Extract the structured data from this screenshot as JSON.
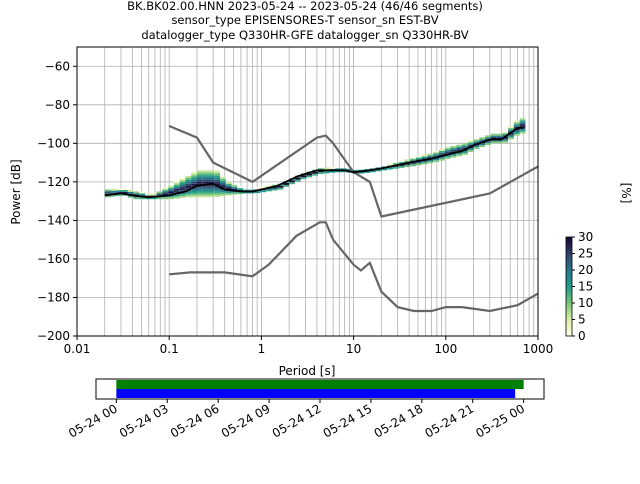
{
  "title_lines": [
    "BK.BK02.00.HNN   2023-05-24 -- 2023-05-24  (46/46 segments)",
    "sensor_type EPISENSORES-T sensor_sn EST-BV",
    "datalogger_type Q330HR-GFE datalogger_sn Q330HR-BV"
  ],
  "chart_data": [
    {
      "type": "heatmap",
      "xlabel": "Period [s]",
      "ylabel": "Power [dB]",
      "xscale": "log",
      "xlim": [
        0.01,
        1000
      ],
      "ylim": [
        -200,
        -50
      ],
      "xtick_labels": [
        "0.01",
        "0.1",
        "1",
        "10",
        "100",
        "1000"
      ],
      "xticks": [
        0.01,
        0.1,
        1,
        10,
        100,
        1000
      ],
      "yticks": [
        -200,
        -180,
        -160,
        -140,
        -120,
        -100,
        -80,
        -60
      ],
      "grid": true,
      "colorbar": {
        "label": "[%]",
        "ticks": [
          0,
          5,
          10,
          15,
          20,
          25,
          30
        ],
        "range": [
          0,
          30
        ],
        "colors": [
          "#ffffe5",
          "#d9f0a3",
          "#78c679",
          "#1f9e89",
          "#2a788e",
          "#31446b",
          "#1a0a3a"
        ]
      },
      "noise_model_color": "#666666",
      "noise_models": [
        {
          "x": [
            0.1,
            0.2,
            0.3,
            0.8,
            4,
            5,
            6,
            10,
            15,
            20,
            300,
            1000
          ],
          "y": [
            -91,
            -97,
            -110,
            -120,
            -97,
            -96,
            -100,
            -115,
            -120,
            -138,
            -126,
            -112
          ]
        },
        {
          "x": [
            0.1,
            0.17,
            0.4,
            0.8,
            1.2,
            2.4,
            4.3,
            5,
            6,
            10,
            12,
            15,
            20,
            30,
            45,
            70,
            100,
            150,
            300,
            600,
            1000
          ],
          "y": [
            -168,
            -167,
            -167,
            -169,
            -163,
            -148,
            -141,
            -141,
            -150,
            -163,
            -166,
            -162,
            -177,
            -185,
            -187,
            -187,
            -185,
            -185,
            -187,
            -184,
            -178
          ]
        }
      ],
      "mean_curve_color": "#000000",
      "mean_curve": {
        "x": [
          0.02,
          0.03,
          0.04,
          0.06,
          0.1,
          0.15,
          0.2,
          0.3,
          0.4,
          0.6,
          0.8,
          1.5,
          2.5,
          4,
          6,
          8,
          10,
          15,
          20,
          40,
          70,
          100,
          150,
          200,
          300,
          400,
          600,
          700
        ],
        "y": [
          -127,
          -126,
          -127,
          -128,
          -127,
          -125,
          -122,
          -121,
          -124,
          -125,
          -125,
          -122,
          -117,
          -114,
          -114,
          -114,
          -115,
          -114,
          -113,
          -110,
          -108,
          -106,
          -104,
          -101,
          -98,
          -98,
          -92,
          -92
        ]
      },
      "ppsd_band": {
        "x": [
          0.02,
          0.03,
          0.04,
          0.06,
          0.1,
          0.15,
          0.2,
          0.3,
          0.4,
          0.6,
          0.8,
          1.5,
          2.5,
          4,
          6,
          8,
          10,
          15,
          20,
          40,
          70,
          100,
          150,
          200,
          300,
          400,
          600,
          700
        ],
        "upper": [
          -124,
          -124,
          -125,
          -127,
          -122,
          -117,
          -114,
          -114,
          -120,
          -124,
          -124,
          -121,
          -116,
          -113,
          -113,
          -113,
          -114,
          -113,
          -112,
          -108,
          -105,
          -102,
          -100,
          -98,
          -95,
          -95,
          -87,
          -87
        ],
        "lower": [
          -128,
          -127,
          -129,
          -129,
          -129,
          -128,
          -128,
          -128,
          -127,
          -126,
          -126,
          -124,
          -119,
          -116,
          -115,
          -115,
          -116,
          -115,
          -114,
          -112,
          -110,
          -108,
          -106,
          -103,
          -100,
          -100,
          -95,
          -95
        ]
      }
    },
    {
      "type": "bar",
      "xtick_labels": [
        "05-24 00",
        "05-24 03",
        "05-24 06",
        "05-24 09",
        "05-24 12",
        "05-24 15",
        "05-24 18",
        "05-24 21",
        "05-25 00"
      ],
      "xlim_hours": [
        -1.2,
        25.2
      ],
      "series": [
        {
          "color": "#008000",
          "start_hour": 0,
          "end_hour": 24.0
        },
        {
          "color": "#0000ff",
          "start_hour": 0,
          "end_hour": 23.5
        }
      ]
    }
  ]
}
